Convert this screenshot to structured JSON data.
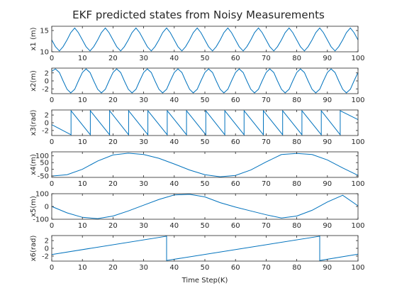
{
  "title": "EKF predicted states from Noisy Measurements",
  "xlabel": "Time Step(K)",
  "colors": {
    "line": "#0072bd",
    "axes": "#262626",
    "background": "#ffffff"
  },
  "chart_data": [
    {
      "type": "line",
      "ylabel": "x1 (m)",
      "xlim": [
        0,
        100
      ],
      "ylim": [
        10,
        16
      ],
      "xticks": [
        0,
        10,
        20,
        30,
        40,
        50,
        60,
        70,
        80,
        90,
        100
      ],
      "yticks": [
        10,
        15
      ],
      "grid": false,
      "series": [
        {
          "x": [
            0,
            1.2,
            2.5,
            3.7,
            5,
            6.2,
            7.5,
            8.7,
            10,
            11.2,
            12.5,
            13.7,
            15,
            16.2,
            17.5,
            18.7,
            20,
            21.2,
            22.5,
            23.7,
            25,
            26.2,
            27.5,
            28.7,
            30,
            31.2,
            32.5,
            33.7,
            35,
            36.2,
            37.5,
            38.7,
            40,
            41.2,
            42.5,
            43.7,
            45,
            46.2,
            47.5,
            48.7,
            50,
            51.2,
            52.5,
            53.7,
            55,
            56.2,
            57.5,
            58.7,
            60,
            61.2,
            62.5,
            63.7,
            65,
            66.2,
            67.5,
            68.7,
            70,
            71.2,
            72.5,
            73.7,
            75,
            76.2,
            77.5,
            78.7,
            80,
            81.2,
            82.5,
            83.7,
            85,
            86.2,
            87.5,
            88.7,
            90,
            91.2,
            92.5,
            93.7,
            95,
            96.2,
            97.5,
            98.7,
            100
          ],
          "y": [
            12.8,
            11.2,
            10.2,
            11.2,
            12.8,
            14.5,
            15.6,
            14.5,
            12.8,
            11.2,
            10.2,
            11.2,
            12.8,
            14.5,
            15.6,
            14.5,
            12.8,
            11.2,
            10.2,
            11.2,
            12.8,
            14.5,
            15.6,
            14.5,
            12.8,
            11.2,
            10.2,
            11.2,
            12.8,
            14.5,
            15.6,
            14.5,
            12.8,
            11.2,
            10.2,
            11.2,
            12.8,
            14.5,
            15.6,
            14.5,
            12.8,
            11.2,
            10.2,
            11.2,
            12.8,
            14.5,
            15.6,
            14.5,
            12.8,
            11.2,
            10.2,
            11.2,
            12.8,
            14.5,
            15.6,
            14.5,
            12.8,
            11.2,
            10.2,
            11.2,
            12.8,
            14.5,
            15.6,
            14.5,
            12.8,
            11.2,
            10.2,
            11.2,
            12.8,
            14.5,
            15.6,
            14.5,
            12.8,
            11.2,
            10.2,
            11.2,
            12.8,
            14.5,
            15.6,
            14.5,
            12.8
          ]
        }
      ]
    },
    {
      "type": "line",
      "ylabel": "x2(m)",
      "xlim": [
        0,
        100
      ],
      "ylim": [
        -3.2,
        3.2
      ],
      "xticks": [
        0,
        10,
        20,
        30,
        40,
        50,
        60,
        70,
        80,
        90,
        100
      ],
      "yticks": [
        -2,
        0,
        2
      ],
      "grid": false,
      "series": [
        {
          "x": [
            0,
            1.2,
            2.5,
            3.7,
            5,
            6.2,
            7.5,
            8.7,
            10,
            11.2,
            12.5,
            13.7,
            15,
            16.2,
            17.5,
            18.7,
            20,
            21.2,
            22.5,
            23.7,
            25,
            26.2,
            27.5,
            28.7,
            30,
            31.2,
            32.5,
            33.7,
            35,
            36.2,
            37.5,
            38.7,
            40,
            41.2,
            42.5,
            43.7,
            45,
            46.2,
            47.5,
            48.7,
            50,
            51.2,
            52.5,
            53.7,
            55,
            56.2,
            57.5,
            58.7,
            60,
            61.2,
            62.5,
            63.7,
            65,
            66.2,
            67.5,
            68.7,
            70,
            71.2,
            72.5,
            73.7,
            75,
            76.2,
            77.5,
            78.7,
            80,
            81.2,
            82.5,
            83.7,
            85,
            86.2,
            87.5,
            88.7,
            90,
            91.2,
            92.5,
            93.7,
            95,
            96.2,
            97.5,
            98.7,
            100
          ],
          "y": [
            2.4,
            3,
            2.1,
            0,
            -2.1,
            -3,
            -2.1,
            0,
            2.1,
            3,
            2.1,
            0,
            -2.1,
            -3,
            -2.1,
            0,
            2.1,
            3,
            2.1,
            0,
            -2.1,
            -3,
            -2.1,
            0,
            2.1,
            3,
            2.1,
            0,
            -2.1,
            -3,
            -2.1,
            0,
            2.1,
            3,
            2.1,
            0,
            -2.1,
            -3,
            -2.1,
            0,
            2.1,
            3,
            2.1,
            0,
            -2.1,
            -3,
            -2.1,
            0,
            2.1,
            3,
            2.1,
            0,
            -2.1,
            -3,
            -2.1,
            0,
            2.1,
            3,
            2.1,
            0,
            -2.1,
            -3,
            -2.1,
            0,
            2.1,
            3,
            2.1,
            0,
            -2.1,
            -3,
            -2.1,
            0,
            2.1,
            3,
            2.1,
            0,
            -2.1,
            -3,
            -2.1,
            0,
            2.1
          ]
        }
      ]
    },
    {
      "type": "line",
      "ylabel": "x3(rad)",
      "xlim": [
        0,
        100
      ],
      "ylim": [
        -3.3,
        3.3
      ],
      "xticks": [
        0,
        10,
        20,
        30,
        40,
        50,
        60,
        70,
        80,
        90,
        100
      ],
      "yticks": [
        -2,
        0,
        2
      ],
      "grid": false,
      "series": [
        {
          "x": [
            0,
            6.3,
            6.3,
            12.6,
            12.6,
            18.9,
            18.9,
            25.1,
            25.1,
            31.4,
            31.4,
            37.7,
            37.7,
            44,
            44,
            50.3,
            50.3,
            56.5,
            56.5,
            62.8,
            62.8,
            69.1,
            69.1,
            75.4,
            75.4,
            81.7,
            81.7,
            88,
            88,
            94.2,
            94.2,
            100
          ],
          "y": [
            -0.5,
            -3.1,
            3.1,
            -3.1,
            3.1,
            -3.1,
            3.1,
            -3.1,
            3.1,
            -3.1,
            3.1,
            -3.1,
            3.1,
            -3.1,
            3.1,
            -3.1,
            3.1,
            -3.1,
            3.1,
            -3.1,
            3.1,
            -3.1,
            3.1,
            -3.1,
            3.1,
            -3.1,
            3.1,
            -3.1,
            3.1,
            -3.1,
            3.1,
            0.8
          ]
        }
      ]
    },
    {
      "type": "line",
      "ylabel": "x4(m)",
      "xlim": [
        0,
        100
      ],
      "ylim": [
        -60,
        130
      ],
      "xticks": [
        0,
        10,
        20,
        30,
        40,
        50,
        60,
        70,
        80,
        90,
        100
      ],
      "yticks": [
        -50,
        0,
        50,
        100
      ],
      "grid": false,
      "series": [
        {
          "x": [
            0,
            5,
            10,
            15,
            20,
            25,
            30,
            35,
            40,
            45,
            50,
            55,
            60,
            65,
            70,
            75,
            80,
            85,
            90,
            95,
            100
          ],
          "y": [
            -50,
            -40,
            0,
            62,
            107,
            120,
            110,
            82,
            40,
            -5,
            -40,
            -55,
            -45,
            -5,
            55,
            110,
            118,
            110,
            70,
            10,
            -45
          ]
        }
      ]
    },
    {
      "type": "line",
      "ylabel": "x5(m)",
      "xlim": [
        0,
        100
      ],
      "ylim": [
        -100,
        100
      ],
      "xticks": [
        0,
        10,
        20,
        30,
        40,
        50,
        60,
        70,
        80,
        90,
        100
      ],
      "yticks": [
        -100,
        0,
        100
      ],
      "grid": false,
      "series": [
        {
          "x": [
            0,
            5,
            10,
            15,
            20,
            25,
            30,
            35,
            40,
            45,
            50,
            55,
            60,
            65,
            70,
            75,
            80,
            85,
            90,
            95,
            100
          ],
          "y": [
            0,
            -50,
            -85,
            -95,
            -75,
            -35,
            10,
            55,
            90,
            95,
            75,
            30,
            -5,
            -35,
            -65,
            -90,
            -75,
            -30,
            35,
            88,
            5
          ]
        }
      ]
    },
    {
      "type": "line",
      "ylabel": "x6(rad)",
      "xlim": [
        0,
        100
      ],
      "ylim": [
        -3.3,
        3.3
      ],
      "xticks": [
        0,
        10,
        20,
        30,
        40,
        50,
        60,
        70,
        80,
        90,
        100
      ],
      "yticks": [
        -2,
        0,
        2
      ],
      "grid": false,
      "series": [
        {
          "x": [
            0,
            37.5,
            37.5,
            87.5,
            87.5,
            100
          ],
          "y": [
            -1.6,
            3.14,
            -3.14,
            3.14,
            -3.14,
            -1.5
          ]
        }
      ]
    }
  ]
}
